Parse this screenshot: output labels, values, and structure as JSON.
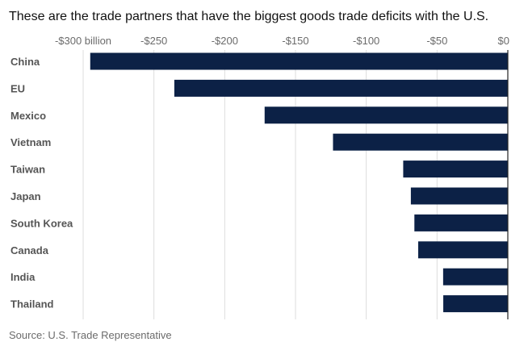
{
  "title": "These are the trade partners that have the biggest goods trade deficits with the U.S.",
  "source": "Source: U.S. Trade Representative",
  "colors": {
    "bar": "#0c2146",
    "grid": "#dddddd",
    "axis": "#222222"
  },
  "chart_data": {
    "type": "bar",
    "orientation": "horizontal",
    "categories": [
      "China",
      "EU",
      "Mexico",
      "Vietnam",
      "Taiwan",
      "Japan",
      "South Korea",
      "Canada",
      "India",
      "Thailand"
    ],
    "values": [
      -295,
      -235.6,
      -171.8,
      -123.5,
      -73.9,
      -68.5,
      -66,
      -63.3,
      -45.7,
      -45.6
    ],
    "xlim": [
      -300,
      0
    ],
    "xticks": [
      -300,
      -250,
      -200,
      -150,
      -100,
      -50,
      0
    ],
    "xtick_labels": [
      "-$300 billion",
      "-$250",
      "-$200",
      "-$150",
      "-$100",
      "-$50",
      "$0"
    ],
    "xaxis_position": "top",
    "grid": true
  }
}
